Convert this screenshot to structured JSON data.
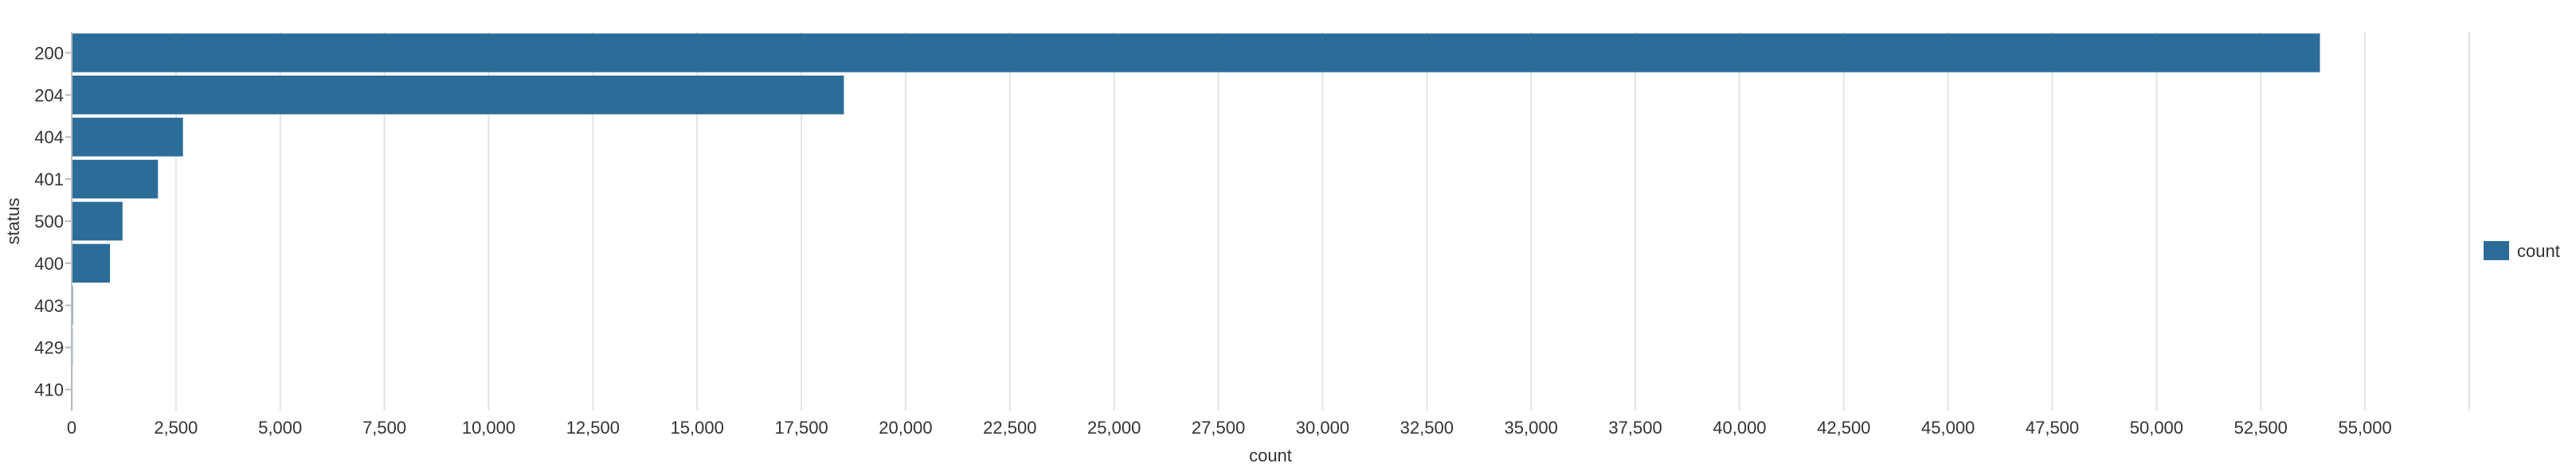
{
  "chart_data": {
    "type": "bar",
    "orientation": "horizontal",
    "categories": [
      "200",
      "204",
      "404",
      "401",
      "500",
      "400",
      "403",
      "429",
      "410"
    ],
    "series": [
      {
        "name": "count",
        "color": "#2c6c99",
        "values": [
          53900,
          18500,
          2650,
          2050,
          1200,
          900,
          10,
          5,
          2
        ]
      }
    ],
    "xlabel": "count",
    "ylabel": "status",
    "xlim": [
      0,
      57500
    ],
    "x_ticks": [
      0,
      2500,
      5000,
      7500,
      10000,
      12500,
      15000,
      17500,
      20000,
      22500,
      25000,
      27500,
      30000,
      32500,
      35000,
      37500,
      40000,
      42500,
      45000,
      47500,
      50000,
      52500,
      55000
    ],
    "x_tick_labels": [
      "0",
      "2,500",
      "5,000",
      "7,500",
      "10,000",
      "12,500",
      "15,000",
      "17,500",
      "20,000",
      "22,500",
      "25,000",
      "27,500",
      "30,000",
      "32,500",
      "35,000",
      "37,500",
      "40,000",
      "42,500",
      "45,000",
      "47,500",
      "50,000",
      "52,500",
      "55,000"
    ],
    "grid": true,
    "legend": {
      "position": "right",
      "entries": [
        "count"
      ]
    }
  }
}
